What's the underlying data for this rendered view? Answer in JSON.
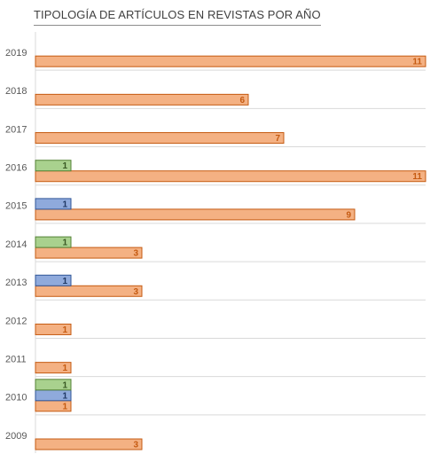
{
  "chart_data": {
    "type": "bar",
    "orientation": "horizontal",
    "title": "TIPOLOGÍA DE ARTÍCULOS EN REVISTAS POR AÑO",
    "xlabel": "",
    "ylabel": "",
    "xlim": [
      0,
      11
    ],
    "grid": true,
    "categories": [
      "2019",
      "2018",
      "2017",
      "2016",
      "2015",
      "2014",
      "2013",
      "2012",
      "2011",
      "2010",
      "2009"
    ],
    "series": [
      {
        "color": "#f4b183",
        "edge": "#c55a11",
        "label_color": "#c55a11",
        "values": [
          11,
          6,
          7,
          11,
          9,
          3,
          3,
          1,
          1,
          1,
          3
        ]
      },
      {
        "color": "#8faadc",
        "edge": "#2f5597",
        "label_color": "#1f3864",
        "values": [
          null,
          null,
          null,
          null,
          1,
          null,
          1,
          null,
          null,
          1,
          null
        ]
      },
      {
        "color": "#a9d18e",
        "edge": "#548235",
        "label_color": "#385723",
        "values": [
          null,
          null,
          null,
          1,
          null,
          1,
          null,
          null,
          null,
          1,
          null
        ]
      }
    ]
  }
}
